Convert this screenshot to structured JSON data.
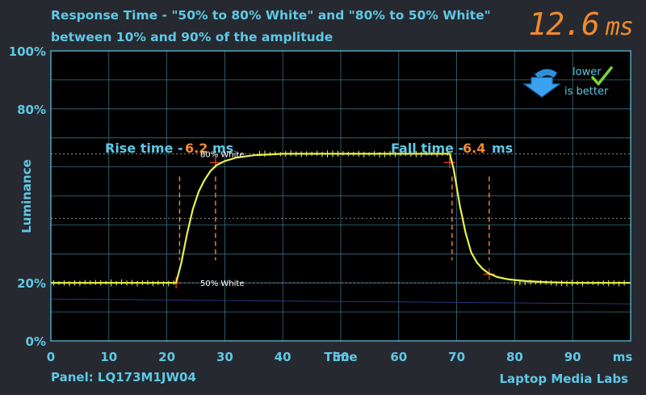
{
  "header": {
    "title_line1": "Response Time - \"50% to 80% White\" and \"80% to 50% White\"",
    "title_line2": "between 10% and 90% of the amplitude",
    "total_value": "12.6",
    "total_unit": "ms"
  },
  "footer": {
    "panel": "Panel: LQ173M1JW04",
    "source": "Laptop Media Labs"
  },
  "badge": {
    "line1": "lower",
    "line2": "is better",
    "arrow_icon": "down-arrow-icon",
    "check_icon": "checkmark-icon"
  },
  "annotations": {
    "rise_label": "Rise time -",
    "rise_value": "6.2",
    "rise_unit": "ms",
    "fall_label": "Fall time -",
    "fall_value": "6.4",
    "fall_unit": "ms",
    "upper_ref": "80% White",
    "lower_ref": "50% White"
  },
  "colors": {
    "accent": "#5ec8e6",
    "value": "#f08a2e",
    "trace": "#e8f24a",
    "plot_bg": "#000000",
    "page_bg": "#26292f"
  },
  "chart_data": {
    "type": "line",
    "xlabel": "Time",
    "ylabel": "Luminance",
    "x_unit_tick": "ms",
    "xlim": [
      0,
      100
    ],
    "ylim": [
      0,
      100
    ],
    "x_ticks": [
      0,
      10,
      20,
      30,
      40,
      50,
      60,
      70,
      80,
      90
    ],
    "y_ticks": [
      0,
      20,
      80,
      100
    ],
    "y_tick_labels": [
      "0%",
      "20%",
      "80%",
      "100%"
    ],
    "grid": true,
    "reference_levels": {
      "low": 20,
      "high": 64.5
    },
    "rise": {
      "start": 21.6,
      "t10": 22.2,
      "t90": 28.4,
      "value_ms": 6.2
    },
    "fall": {
      "start": 68.8,
      "t10": 69.2,
      "t90": 75.6,
      "value_ms": 6.4
    },
    "series": [
      {
        "x": [
          0,
          10,
          20,
          21.6,
          22.5,
          23.5,
          24.5,
          25.5,
          26.5,
          27.5,
          28.5,
          30,
          32,
          35,
          40,
          50,
          60,
          68.8,
          69.5,
          70.5,
          71.5,
          72.5,
          73.5,
          74.5,
          75.5,
          77,
          79,
          82,
          86,
          90,
          100
        ],
        "y": [
          20,
          20,
          20,
          20,
          27,
          37,
          45.5,
          51.5,
          55.5,
          58.5,
          60.5,
          62,
          63.2,
          64,
          64.5,
          64.5,
          64.5,
          64.5,
          59,
          47,
          37.5,
          30.5,
          27,
          24.8,
          23.3,
          22,
          21.2,
          20.6,
          20.2,
          20,
          20
        ]
      }
    ]
  }
}
